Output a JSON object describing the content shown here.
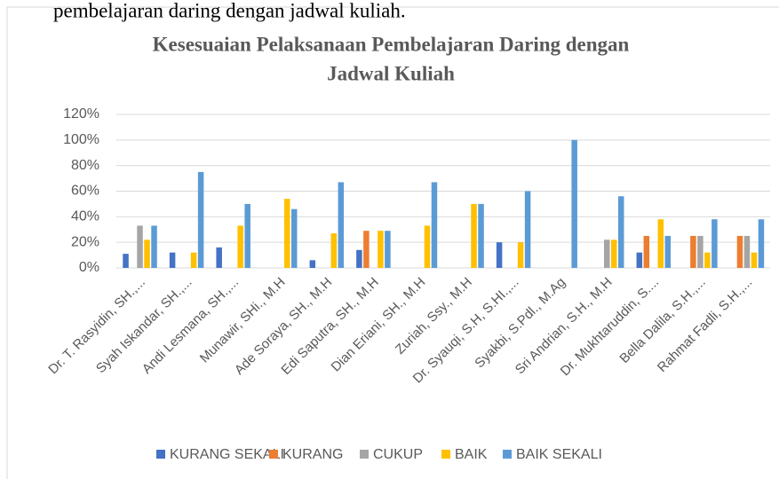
{
  "document_text": "pembelajaran daring dengan jadwal kuliah.",
  "chart_data": {
    "type": "bar",
    "title": [
      "Kesesuaian Pelaksanaan Pembelajaran Daring dengan",
      "Jadwal Kuliah"
    ],
    "categories": [
      "Dr. T. Rasyidin, SH.,...",
      "Syah Iskandar, SH.,...",
      "Andi Lesmana, SH.,...",
      "Munawir, SHi., M.H",
      "Ade Soraya, SH., M.H",
      "Edi Saputra, SH., M.H",
      "Dian Eriani, SH., M.H",
      "Zuriah, Ssy., M.H",
      "Dr. Syauqi, S.H, S.HI.,...",
      "Syakbi, S.Pdl., M.Ag",
      "Sri Andrian, S.H., M.H",
      "Dr. Mukhtaruddin, S....",
      "Bella Dalila, S.H.,...",
      "Rahmat Fadli, S.H.,..."
    ],
    "series": [
      {
        "name": "KURANG SEKALI",
        "color": "#4472c4",
        "values": [
          11,
          12,
          16,
          0,
          6,
          14,
          0,
          0,
          20,
          0,
          0,
          12,
          0,
          0
        ]
      },
      {
        "name": "KURANG",
        "color": "#ed7d31",
        "values": [
          0,
          0,
          0,
          0,
          0,
          29,
          0,
          0,
          0,
          0,
          0,
          25,
          25,
          25
        ]
      },
      {
        "name": "CUKUP",
        "color": "#a5a5a5",
        "values": [
          33,
          0,
          0,
          0,
          0,
          0,
          0,
          0,
          0,
          0,
          22,
          0,
          25,
          25
        ]
      },
      {
        "name": "BAIK",
        "color": "#ffc000",
        "values": [
          22,
          12,
          33,
          54,
          27,
          29,
          33,
          50,
          20,
          0,
          22,
          38,
          12,
          12
        ]
      },
      {
        "name": "BAIK SEKALI",
        "color": "#5b9bd5",
        "values": [
          33,
          75,
          50,
          46,
          67,
          29,
          67,
          50,
          60,
          100,
          56,
          25,
          38,
          38
        ]
      }
    ],
    "ylim": [
      0,
      120
    ],
    "yticks": [
      {
        "value": 0,
        "label": "0%"
      },
      {
        "value": 20,
        "label": "20%"
      },
      {
        "value": 40,
        "label": "40%"
      },
      {
        "value": 60,
        "label": "60%"
      },
      {
        "value": 80,
        "label": "80%"
      },
      {
        "value": 100,
        "label": "100%"
      },
      {
        "value": 120,
        "label": "120%"
      }
    ],
    "grid": true,
    "legend": "bottom"
  }
}
